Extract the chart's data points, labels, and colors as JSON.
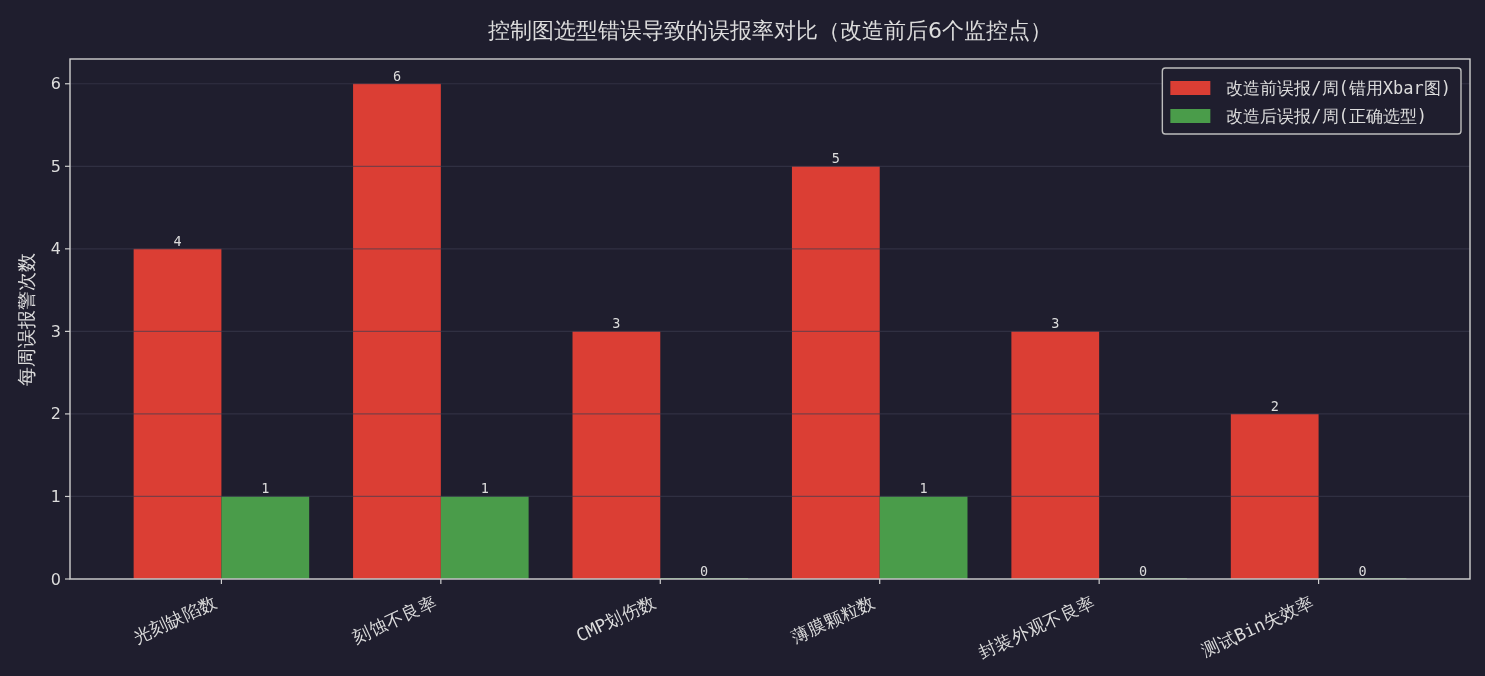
{
  "chart_data": {
    "type": "bar",
    "title": "控制图选型错误导致的误报率对比（改造前后6个监控点）",
    "ylabel": "每周误报警次数",
    "categories": [
      "光刻缺陷数",
      "刻蚀不良率",
      "CMP划伤数",
      "薄膜颗粒数",
      "封装外观不良率",
      "测试Bin失效率"
    ],
    "series": [
      {
        "name": "改造前误报/周(错用Xbar图)",
        "color": "#db3e34",
        "values": [
          4,
          6,
          3,
          5,
          3,
          2
        ]
      },
      {
        "name": "改造后误报/周(正确选型)",
        "color": "#4a9c4a",
        "values": [
          1,
          1,
          0,
          1,
          0,
          0
        ]
      }
    ],
    "ylim": [
      0,
      6.3
    ],
    "yticks": [
      0,
      1,
      2,
      3,
      4,
      5,
      6
    ],
    "grid": "y",
    "legend": "top right",
    "data_labels": true
  }
}
